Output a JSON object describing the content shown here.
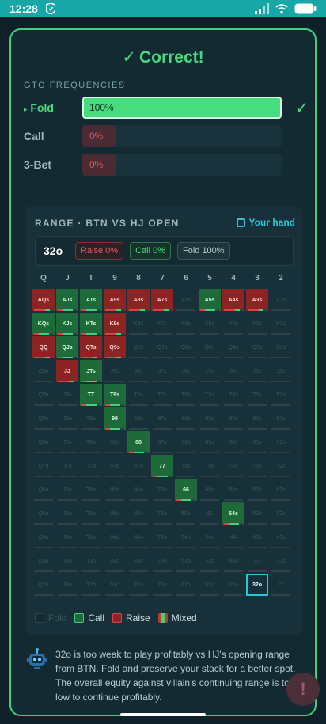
{
  "status": {
    "time": "12:28"
  },
  "result": {
    "title": "Correct!",
    "check": "✓"
  },
  "freq": {
    "label": "GTO FREQUENCIES",
    "rows": [
      {
        "name": "Fold",
        "marker": "▸",
        "pct": "100%",
        "value": 100,
        "active": true
      },
      {
        "name": "Call",
        "pct": "0%",
        "value": 0,
        "active": false
      },
      {
        "name": "3-Bet",
        "pct": "0%",
        "value": 0,
        "active": false
      }
    ]
  },
  "range": {
    "title": "RANGE · BTN VS HJ OPEN",
    "your_hand_label": "Your hand",
    "hand": "32o",
    "raise_pill": "Raise 0%",
    "call_pill": "Call 0%",
    "fold_pill": "Fold 100%",
    "col_labels": [
      "Q",
      "J",
      "T",
      "9",
      "8",
      "7",
      "6",
      "5",
      "4",
      "3",
      "2"
    ],
    "rows": [
      [
        "AQs",
        "AJs",
        "ATs",
        "A9s",
        "A8s",
        "A7s",
        "A6s",
        "A5s",
        "A4s",
        "A3s",
        "A2s"
      ],
      [
        "KQs",
        "KJs",
        "KTs",
        "K9s",
        "K8s",
        "K7s",
        "K6s",
        "K5s",
        "K4s",
        "K3s",
        "K2s"
      ],
      [
        "QQ",
        "QJs",
        "QTs",
        "Q9s",
        "Q8s",
        "Q7s",
        "Q6s",
        "Q5s",
        "Q4s",
        "Q3s",
        "Q2s"
      ],
      [
        "QJo",
        "JJ",
        "JTs",
        "J9s",
        "J8s",
        "J7s",
        "J6s",
        "J5s",
        "J4s",
        "J3s",
        "J2s"
      ],
      [
        "QTo",
        "JTo",
        "TT",
        "T9s",
        "T8s",
        "T7s",
        "T6s",
        "T5s",
        "T4s",
        "T3s",
        "T2s"
      ],
      [
        "Q9o",
        "J9o",
        "T9o",
        "99",
        "98s",
        "97s",
        "96s",
        "95s",
        "94s",
        "93s",
        "92s"
      ],
      [
        "Q8o",
        "J8o",
        "T8o",
        "98o",
        "88",
        "87s",
        "86s",
        "85s",
        "84s",
        "83s",
        "82s"
      ],
      [
        "Q7o",
        "J7o",
        "T7o",
        "97o",
        "87o",
        "77",
        "76s",
        "75s",
        "74s",
        "73s",
        "72s"
      ],
      [
        "Q6o",
        "J6o",
        "T6o",
        "96o",
        "86o",
        "76o",
        "66",
        "65s",
        "64s",
        "63s",
        "62s"
      ],
      [
        "Q5o",
        "J5o",
        "T5o",
        "95o",
        "85o",
        "75o",
        "65o",
        "55",
        "54s",
        "53s",
        "52s"
      ],
      [
        "Q4o",
        "J4o",
        "T4o",
        "94o",
        "84o",
        "74o",
        "64o",
        "54o",
        "44",
        "43s",
        "42s"
      ],
      [
        "Q3o",
        "J3o",
        "T3o",
        "93o",
        "83o",
        "73o",
        "63o",
        "53o",
        "43o",
        "33",
        "32s"
      ],
      [
        "Q2o",
        "J2o",
        "T2o",
        "92o",
        "82o",
        "72o",
        "62o",
        "52o",
        "42o",
        "32o",
        "22"
      ]
    ],
    "states": [
      [
        "raise",
        "call",
        "call",
        "raise",
        "raise",
        "raise",
        "fold",
        "call",
        "raise",
        "raise",
        "fold"
      ],
      [
        "call",
        "call",
        "call",
        "raise",
        "fold",
        "fold",
        "fold",
        "fold",
        "fold",
        "fold",
        "fold"
      ],
      [
        "raise",
        "call",
        "raise",
        "raise",
        "fold",
        "fold",
        "fold",
        "fold",
        "fold",
        "fold",
        "fold"
      ],
      [
        "fold",
        "raise",
        "call",
        "fold",
        "fold",
        "fold",
        "fold",
        "fold",
        "fold",
        "fold",
        "fold"
      ],
      [
        "fold",
        "fold",
        "call",
        "call",
        "fold",
        "fold",
        "fold",
        "fold",
        "fold",
        "fold",
        "fold"
      ],
      [
        "fold",
        "fold",
        "fold",
        "call",
        "fold",
        "fold",
        "fold",
        "fold",
        "fold",
        "fold",
        "fold"
      ],
      [
        "fold",
        "fold",
        "fold",
        "fold",
        "call",
        "fold",
        "fold",
        "fold",
        "fold",
        "fold",
        "fold"
      ],
      [
        "fold",
        "fold",
        "fold",
        "fold",
        "fold",
        "call",
        "fold",
        "fold",
        "fold",
        "fold",
        "fold"
      ],
      [
        "fold",
        "fold",
        "fold",
        "fold",
        "fold",
        "fold",
        "call",
        "fold",
        "fold",
        "fold",
        "fold"
      ],
      [
        "fold",
        "fold",
        "fold",
        "fold",
        "fold",
        "fold",
        "fold",
        "fold",
        "call",
        "fold",
        "fold"
      ],
      [
        "fold",
        "fold",
        "fold",
        "fold",
        "fold",
        "fold",
        "fold",
        "fold",
        "fold",
        "fold",
        "fold"
      ],
      [
        "fold",
        "fold",
        "fold",
        "fold",
        "fold",
        "fold",
        "fold",
        "fold",
        "fold",
        "fold",
        "fold"
      ],
      [
        "fold",
        "fold",
        "fold",
        "fold",
        "fold",
        "fold",
        "fold",
        "fold",
        "fold",
        "hl",
        "fold"
      ]
    ],
    "legend": {
      "fold": "Fold",
      "call": "Call",
      "raise": "Raise",
      "mixed": "Mixed"
    }
  },
  "explanation": "32o is too weak to play profitably vs HJ's opening range from BTN. Fold and preserve your stack for a better spot. The overall equity against villain's continuing range is too low to continue profitably.",
  "fab_label": "!",
  "colors": {
    "accent": "#45d97e",
    "raise": "#8c2424",
    "call": "#1f6a3a",
    "highlight": "#26c6da"
  }
}
